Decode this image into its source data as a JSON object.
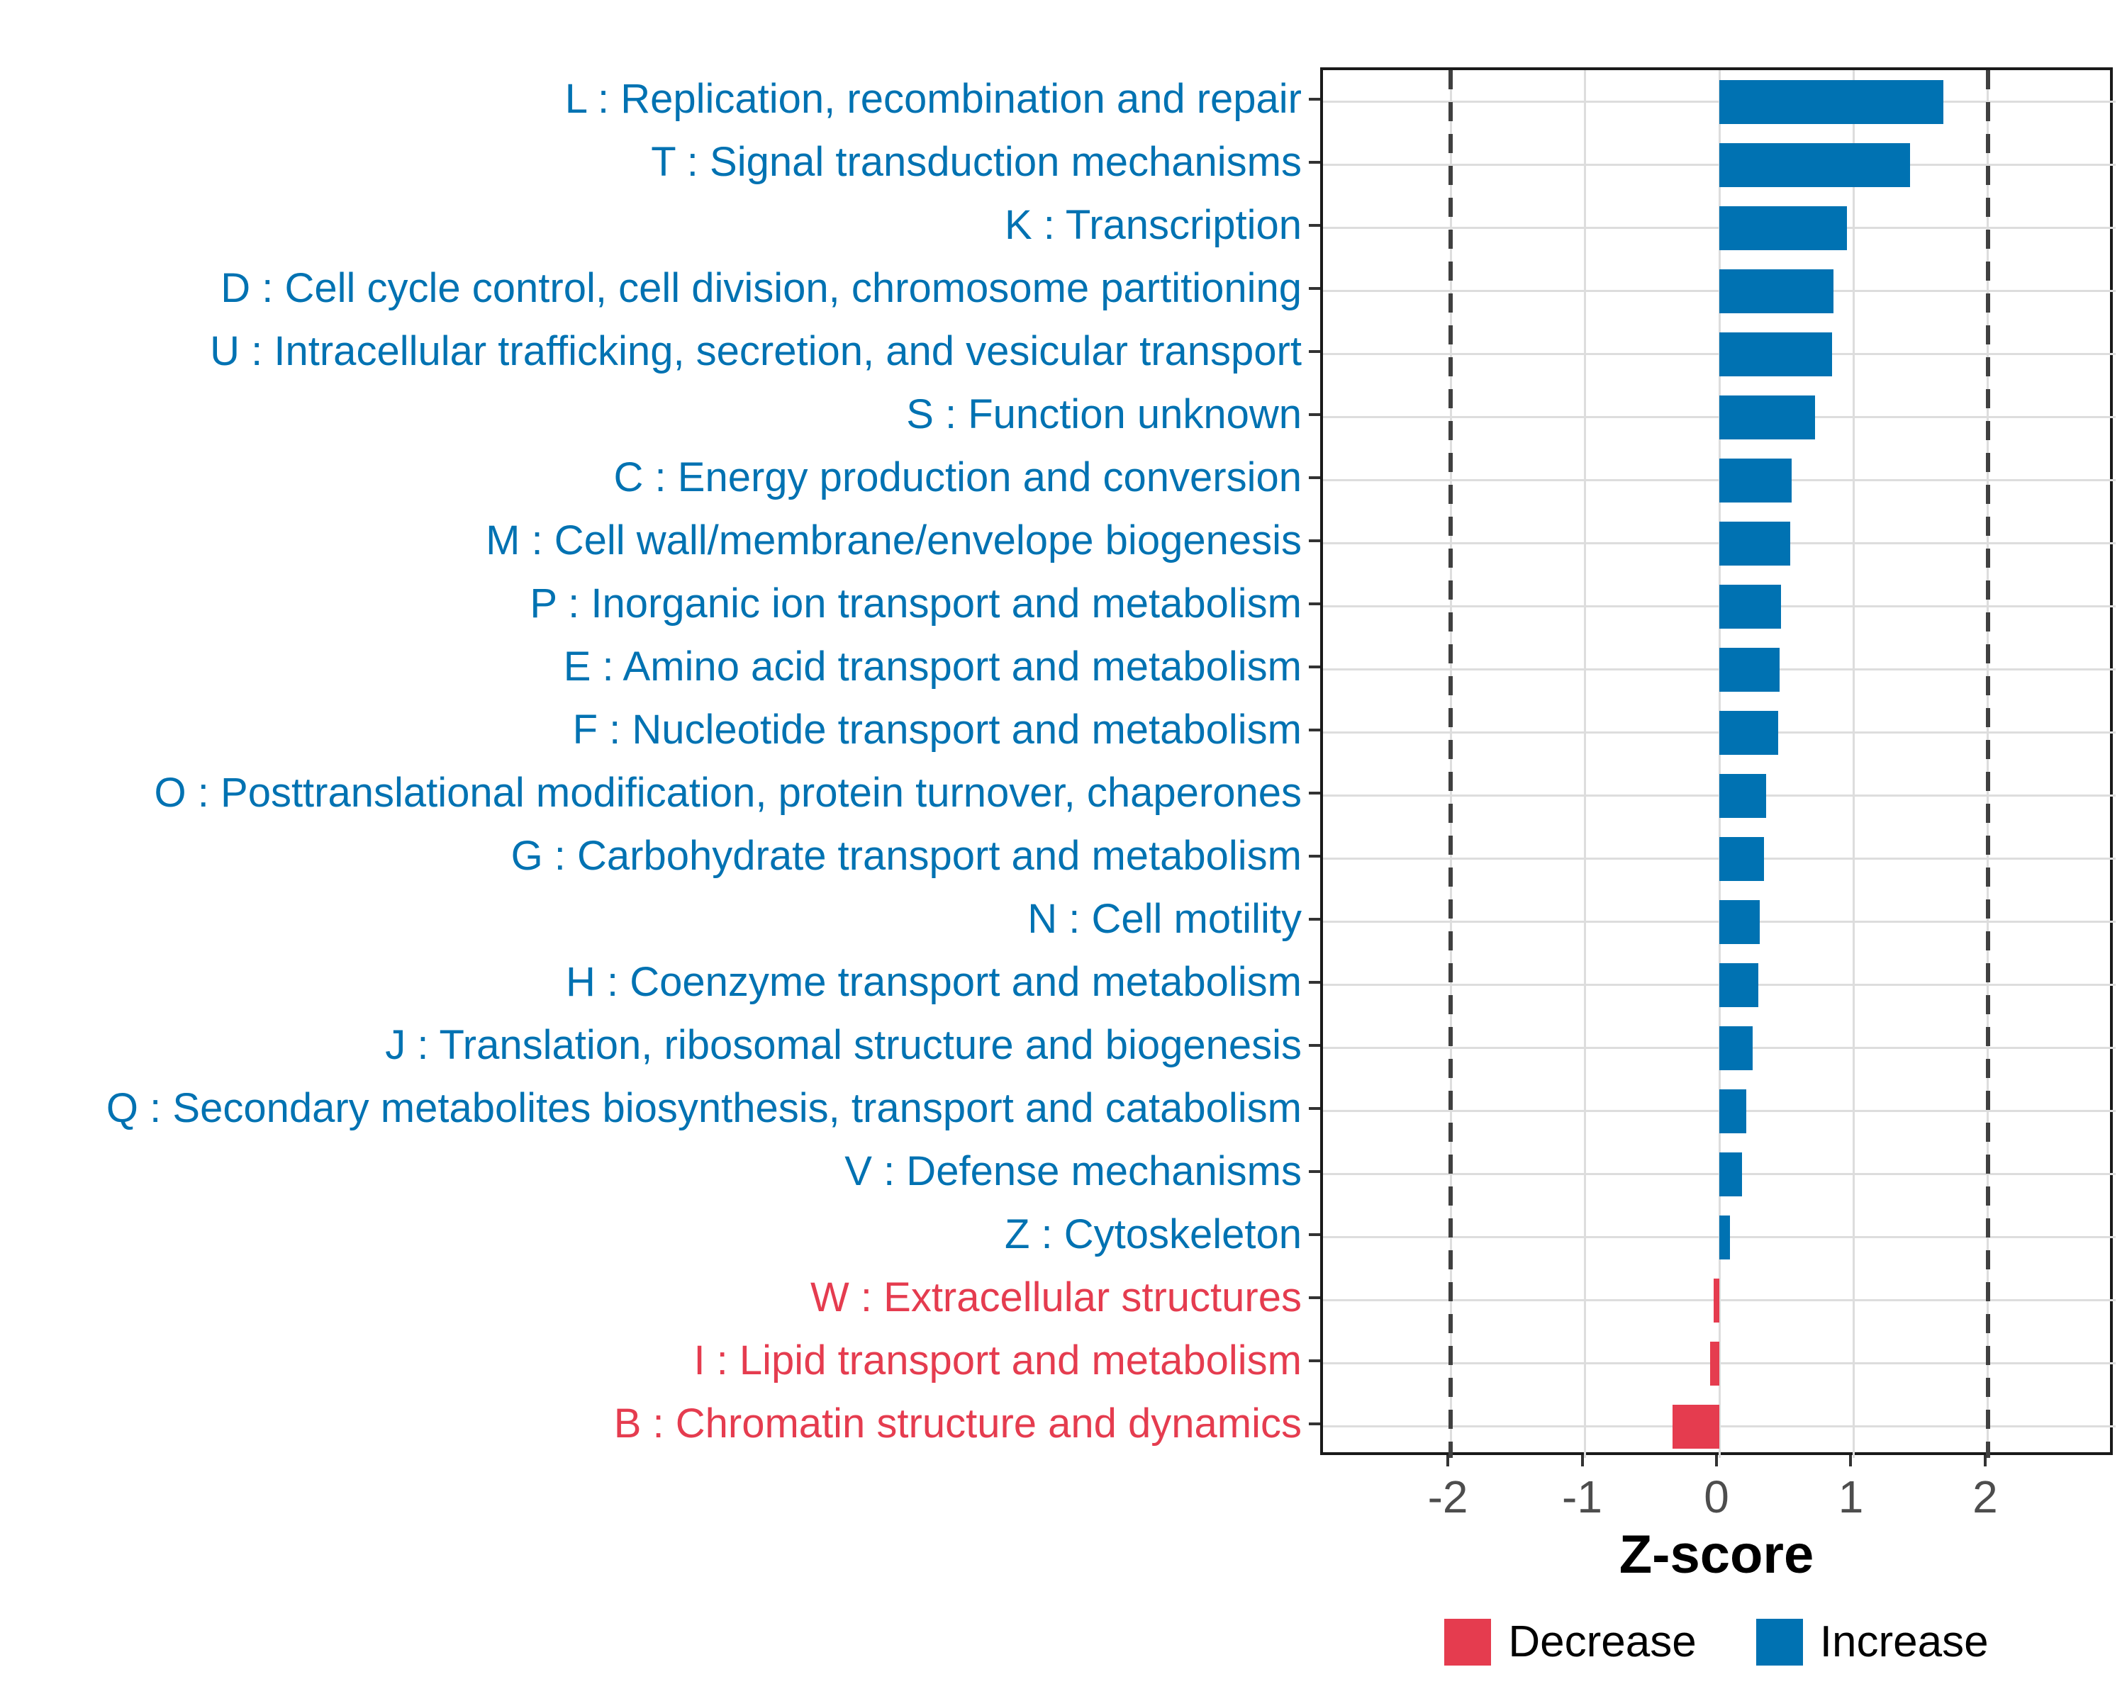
{
  "chart_data": {
    "type": "bar",
    "orientation": "horizontal",
    "title": "",
    "xlabel": "Z-score",
    "xlim": [
      -2.95,
      2.95
    ],
    "xticks": [
      -2,
      -1,
      0,
      1,
      2
    ],
    "dashed_reference_lines": [
      -2,
      2
    ],
    "grid": "major gridlines on, light gray; one horizontal gridline per category",
    "legend_position": "bottom-center",
    "bars": [
      {
        "label": "L : Replication, recombination and repair",
        "value": 1.67,
        "group": "Increase"
      },
      {
        "label": "T : Signal transduction mechanisms",
        "value": 1.42,
        "group": "Increase"
      },
      {
        "label": "K : Transcription",
        "value": 0.95,
        "group": "Increase"
      },
      {
        "label": "D : Cell cycle control, cell division, chromosome partitioning",
        "value": 0.85,
        "group": "Increase"
      },
      {
        "label": "U : Intracellular trafficking, secretion, and vesicular transport",
        "value": 0.84,
        "group": "Increase"
      },
      {
        "label": "S : Function unknown",
        "value": 0.71,
        "group": "Increase"
      },
      {
        "label": "C : Energy production and conversion",
        "value": 0.54,
        "group": "Increase"
      },
      {
        "label": "M : Cell wall/membrane/envelope biogenesis",
        "value": 0.53,
        "group": "Increase"
      },
      {
        "label": "P : Inorganic ion transport and metabolism",
        "value": 0.46,
        "group": "Increase"
      },
      {
        "label": "E : Amino acid transport and metabolism",
        "value": 0.45,
        "group": "Increase"
      },
      {
        "label": "F : Nucleotide transport and metabolism",
        "value": 0.44,
        "group": "Increase"
      },
      {
        "label": "O : Posttranslational modification, protein turnover, chaperones",
        "value": 0.35,
        "group": "Increase"
      },
      {
        "label": "G : Carbohydrate transport and metabolism",
        "value": 0.33,
        "group": "Increase"
      },
      {
        "label": "N : Cell motility",
        "value": 0.3,
        "group": "Increase"
      },
      {
        "label": "H : Coenzyme transport and metabolism",
        "value": 0.29,
        "group": "Increase"
      },
      {
        "label": "J : Translation, ribosomal structure and biogenesis",
        "value": 0.25,
        "group": "Increase"
      },
      {
        "label": "Q : Secondary metabolites biosynthesis, transport and catabolism",
        "value": 0.2,
        "group": "Increase"
      },
      {
        "label": "V : Defense mechanisms",
        "value": 0.17,
        "group": "Increase"
      },
      {
        "label": "Z : Cytoskeleton",
        "value": 0.08,
        "group": "Increase"
      },
      {
        "label": "W : Extracellular structures",
        "value": -0.04,
        "group": "Decrease"
      },
      {
        "label": "I : Lipid transport and metabolism",
        "value": -0.07,
        "group": "Decrease"
      },
      {
        "label": "B : Chromatin structure and dynamics",
        "value": -0.35,
        "group": "Decrease"
      }
    ]
  },
  "legend": {
    "items": [
      {
        "label": "Decrease",
        "color": "#E53C4F"
      },
      {
        "label": "Increase",
        "color": "#0072B2"
      }
    ]
  },
  "colors": {
    "increase": "#0072B2",
    "decrease": "#E53C4F",
    "grid": "#DDDDDD",
    "reference_line": "#404040",
    "axis_tick": "#333333",
    "tick_label": "#4D4D4D",
    "panel_border": "#1A1A1A"
  }
}
